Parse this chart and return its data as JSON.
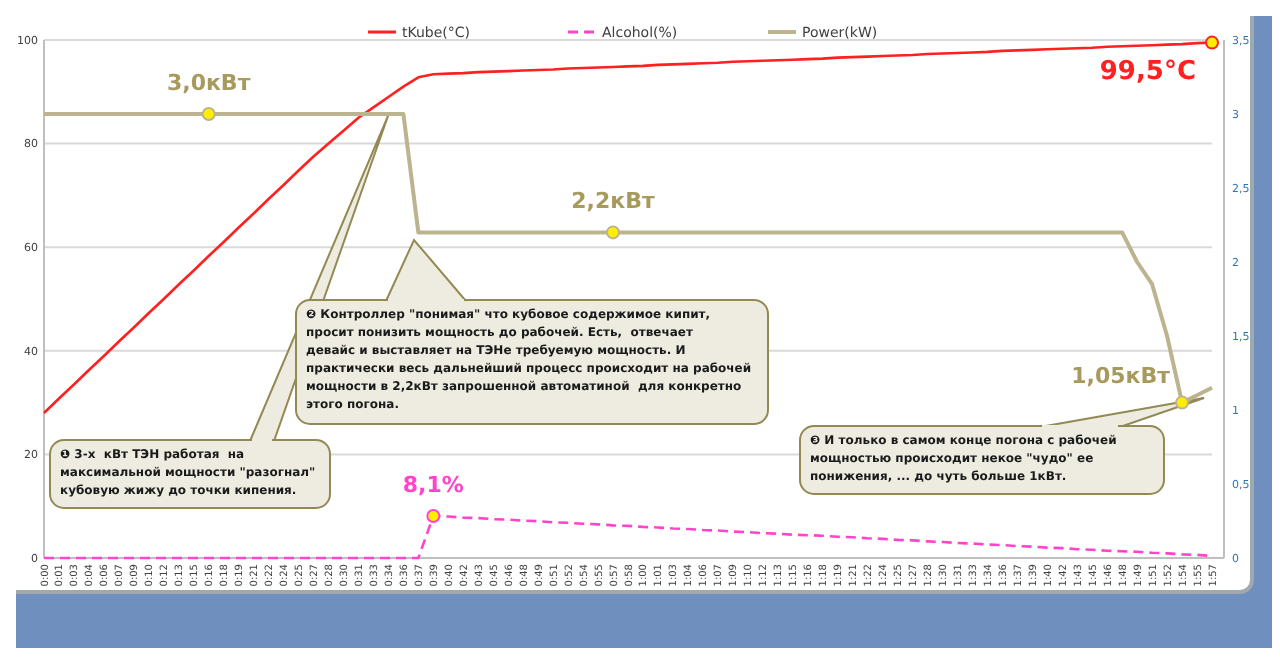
{
  "chart_data": {
    "type": "line",
    "categories": [
      "0:00",
      "0:01",
      "0:03",
      "0:04",
      "0:06",
      "0:07",
      "0:09",
      "0:10",
      "0:12",
      "0:13",
      "0:15",
      "0:16",
      "0:18",
      "0:19",
      "0:21",
      "0:22",
      "0:24",
      "0:25",
      "0:27",
      "0:28",
      "0:30",
      "0:31",
      "0:33",
      "0:34",
      "0:36",
      "0:37",
      "0:39",
      "0:40",
      "0:42",
      "0:43",
      "0:45",
      "0:46",
      "0:48",
      "0:49",
      "0:51",
      "0:52",
      "0:54",
      "0:55",
      "0:57",
      "0:58",
      "1:00",
      "1:01",
      "1:03",
      "1:04",
      "1:06",
      "1:07",
      "1:09",
      "1:10",
      "1:12",
      "1:13",
      "1:15",
      "1:16",
      "1:18",
      "1:19",
      "1:21",
      "1:22",
      "1:24",
      "1:25",
      "1:27",
      "1:28",
      "1:30",
      "1:31",
      "1:33",
      "1:34",
      "1:36",
      "1:37",
      "1:39",
      "1:40",
      "1:42",
      "1:43",
      "1:45",
      "1:46",
      "1:48",
      "1:49",
      "1:51",
      "1:52",
      "1:54",
      "1:55",
      "1:57"
    ],
    "series": [
      {
        "name": "tKube(°C)",
        "color": "#ff2020",
        "values": [
          28,
          30.8,
          33.5,
          36.3,
          39,
          41.8,
          44.5,
          47.3,
          50,
          52.8,
          55.5,
          58.3,
          61,
          63.8,
          66.5,
          69.3,
          72,
          74.8,
          77.5,
          80,
          82.5,
          85,
          87,
          89,
          91,
          92.8,
          93.4,
          93.5,
          93.6,
          93.8,
          93.9,
          94.0,
          94.1,
          94.2,
          94.3,
          94.5,
          94.6,
          94.7,
          94.8,
          94.9,
          95.0,
          95.2,
          95.3,
          95.4,
          95.5,
          95.6,
          95.8,
          95.9,
          96.0,
          96.1,
          96.2,
          96.3,
          96.4,
          96.6,
          96.7,
          96.8,
          96.9,
          97.0,
          97.1,
          97.3,
          97.4,
          97.5,
          97.6,
          97.7,
          97.9,
          98.0,
          98.1,
          98.2,
          98.3,
          98.4,
          98.5,
          98.7,
          98.8,
          98.9,
          99.0,
          99.1,
          99.2,
          99.4,
          99.5
        ],
        "value_labels": [
          null,
          null,
          null,
          null,
          null,
          null,
          null,
          null,
          null,
          null,
          null,
          null,
          null,
          null,
          null,
          null,
          null,
          null,
          null,
          null,
          null,
          null,
          null,
          null,
          null,
          null,
          null,
          null,
          null,
          null,
          null,
          null,
          null,
          null,
          null,
          null,
          null,
          null,
          null,
          null,
          null,
          null,
          null,
          null,
          null,
          null,
          null,
          null,
          null,
          null,
          null,
          null,
          null,
          null,
          null,
          null,
          null,
          null,
          null,
          null,
          null,
          null,
          null,
          null,
          null,
          null,
          null,
          null,
          null,
          null,
          null,
          null,
          null,
          null,
          null,
          null,
          null,
          null,
          "99,5°C"
        ]
      },
      {
        "name": "Alcohol(%)",
        "color": "#ff44cc",
        "line_style": "dashed",
        "values": [
          0,
          0,
          0,
          0,
          0,
          0,
          0,
          0,
          0,
          0,
          0,
          0,
          0,
          0,
          0,
          0,
          0,
          0,
          0,
          0,
          0,
          0,
          0,
          0,
          0,
          0,
          8.1,
          8.0,
          7.8,
          7.7,
          7.5,
          7.4,
          7.2,
          7.1,
          6.9,
          6.8,
          6.6,
          6.5,
          6.3,
          6.2,
          6.0,
          5.9,
          5.7,
          5.6,
          5.4,
          5.3,
          5.1,
          5.0,
          4.8,
          4.7,
          4.5,
          4.4,
          4.3,
          4.1,
          4.0,
          3.8,
          3.7,
          3.5,
          3.4,
          3.2,
          3.1,
          2.9,
          2.8,
          2.6,
          2.5,
          2.3,
          2.2,
          2.0,
          1.9,
          1.7,
          1.6,
          1.4,
          1.3,
          1.2,
          1.0,
          0.9,
          0.7,
          0.6,
          0.4
        ],
        "value_labels": [
          null,
          null,
          null,
          null,
          null,
          null,
          null,
          null,
          null,
          null,
          null,
          null,
          null,
          null,
          null,
          null,
          null,
          null,
          null,
          null,
          null,
          null,
          null,
          null,
          null,
          null,
          "8,1%",
          null,
          null,
          null,
          null,
          null,
          null,
          null,
          null,
          null,
          null,
          null,
          null,
          null,
          null,
          null,
          null,
          null,
          null,
          null,
          null,
          null,
          null,
          null,
          null,
          null,
          null,
          null,
          null,
          null,
          null,
          null,
          null,
          null,
          null,
          null,
          null,
          null,
          null,
          null,
          null,
          null,
          null,
          null,
          null,
          null,
          null,
          null,
          null,
          null,
          null,
          null,
          null
        ]
      },
      {
        "name": "Power(kW)",
        "color": "#bcb38f",
        "axis": "y2",
        "values": [
          3,
          3,
          3,
          3,
          3,
          3,
          3,
          3,
          3,
          3,
          3,
          3,
          3,
          3,
          3,
          3,
          3,
          3,
          3,
          3,
          3,
          3,
          3,
          3,
          3,
          2.2,
          2.2,
          2.2,
          2.2,
          2.2,
          2.2,
          2.2,
          2.2,
          2.2,
          2.2,
          2.2,
          2.2,
          2.2,
          2.2,
          2.2,
          2.2,
          2.2,
          2.2,
          2.2,
          2.2,
          2.2,
          2.2,
          2.2,
          2.2,
          2.2,
          2.2,
          2.2,
          2.2,
          2.2,
          2.2,
          2.2,
          2.2,
          2.2,
          2.2,
          2.2,
          2.2,
          2.2,
          2.2,
          2.2,
          2.2,
          2.2,
          2.2,
          2.2,
          2.2,
          2.2,
          2.2,
          2.2,
          2.2,
          2.0,
          1.85,
          1.5,
          1.05,
          1.1,
          1.15
        ],
        "value_labels": [
          null,
          null,
          null,
          null,
          null,
          null,
          null,
          null,
          null,
          null,
          null,
          "3,0кВт",
          null,
          null,
          null,
          null,
          null,
          null,
          null,
          null,
          null,
          null,
          null,
          null,
          null,
          null,
          null,
          null,
          null,
          null,
          null,
          null,
          null,
          null,
          null,
          null,
          null,
          null,
          "2,2кВт",
          null,
          null,
          null,
          null,
          null,
          null,
          null,
          null,
          null,
          null,
          null,
          null,
          null,
          null,
          null,
          null,
          null,
          null,
          null,
          null,
          null,
          null,
          null,
          null,
          null,
          null,
          null,
          null,
          null,
          null,
          null,
          null,
          null,
          null,
          null,
          null,
          null,
          "1,05кВт",
          null,
          null
        ]
      }
    ],
    "ylim": [
      0,
      100
    ],
    "yticks": [
      0,
      20,
      40,
      60,
      80,
      100
    ],
    "y2lim": [
      0,
      3.5
    ],
    "y2ticks": [
      0,
      {
        "value": 0.5,
        "label": "0,5"
      },
      1,
      {
        "value": 1.5,
        "label": "1,5"
      },
      2,
      {
        "value": 2.5,
        "label": "2,5"
      },
      3,
      {
        "value": 3.5,
        "label": "3,5"
      }
    ],
    "grid": "y",
    "legend": "top",
    "annotations": [
      "❶ 3-х  кВт ТЭН работая  на\nмаксимальной мощности \"разогнал\"\nкубовую жижу до точки кипения.",
      "❷ Контроллер \"понимая\" что кубовое содержимое кипит,\nпросит понизить мощность до рабочей. Есть,  отвечает\nдевайс и выставляет на ТЭНе требуемую мощность. И\nпрактически весь дальнейший процесс происходит на рабочей\nмощности в 2,2кВт запрошенной автоматиной  для конкретно\nэтого погона.",
      "❸ И только в самом конце погона с рабочей\nмощностью происходит некое \"чудо\" ее\nпонижения, ... до чуть больше 1кВт."
    ]
  }
}
